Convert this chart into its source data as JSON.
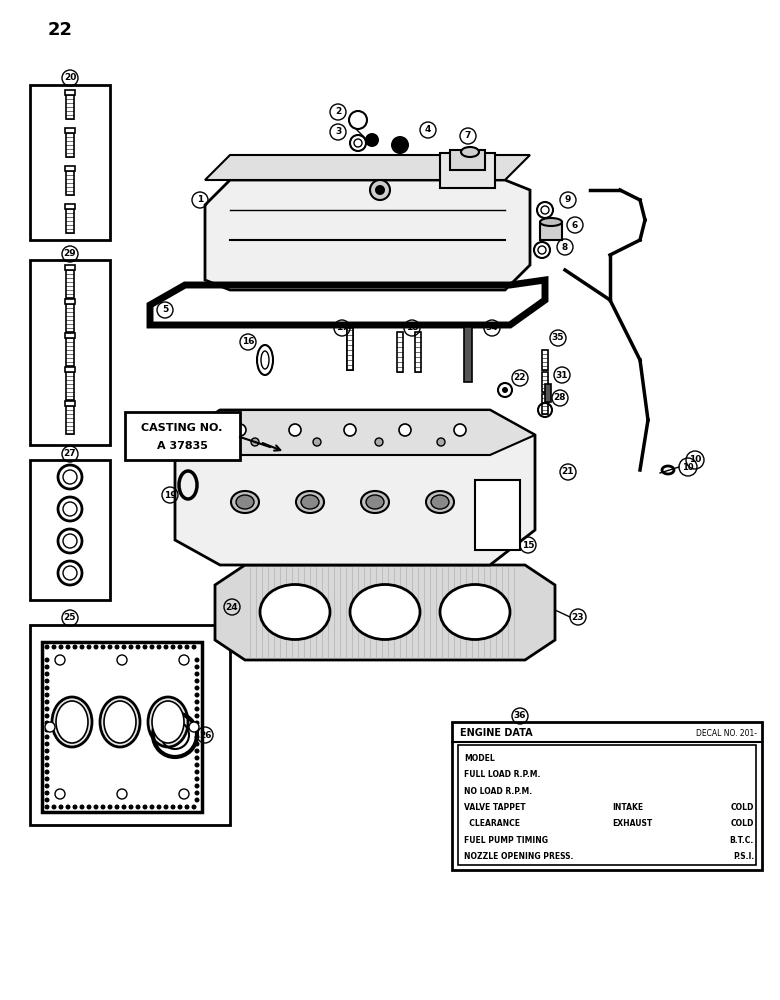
{
  "page_number": "22",
  "bg": "#ffffff",
  "casting_label": "CASTING NO.\nA 37835",
  "engine_data_rows": [
    [
      "MODEL",
      "",
      ""
    ],
    [
      "FULL LOAD R.P.M.",
      "",
      ""
    ],
    [
      "NO LOAD R.P.M.",
      "",
      ""
    ],
    [
      "VALVE TAPPET",
      "INTAKE",
      "COLD"
    ],
    [
      "  CLEARANCE",
      "EXHAUST",
      "COLD"
    ],
    [
      "FUEL PUMP TIMING",
      "",
      "B.T.C."
    ],
    [
      "NOZZLE OPENING PRESS.",
      "",
      "P.S.I."
    ]
  ]
}
